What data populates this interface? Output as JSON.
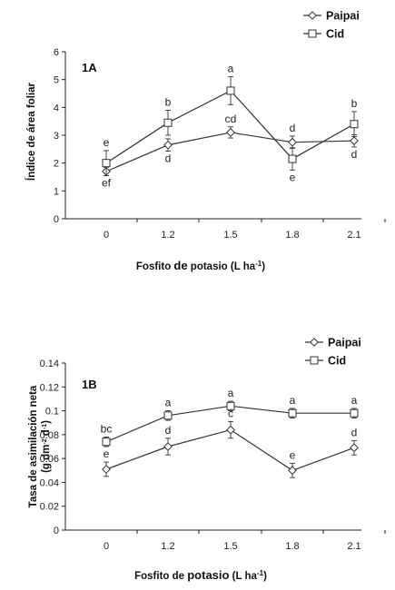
{
  "chart_data": [
    {
      "type": "line",
      "panel_label": "1A",
      "categories": [
        "0",
        "1.2",
        "1.5",
        "1.8",
        "2.1"
      ],
      "xlabel_main": "Fosfito ",
      "xlabel_de": "de",
      "xlabel_rest": " potasio (L ha",
      "xlabel_sup": "-1",
      "xlabel_close": ")",
      "ylabel_line1": "Índice de área foliar",
      "ylabel_line2": "",
      "ylim": [
        0,
        6
      ],
      "yticks": [
        0,
        1,
        2,
        3,
        4,
        5,
        6
      ],
      "ytick_labels": [
        "0",
        "1",
        "2",
        "3",
        "4",
        "5",
        "6"
      ],
      "legend_position": "top-right",
      "series": [
        {
          "name": "Paipai",
          "marker": "diamond",
          "values": [
            1.7,
            2.65,
            3.1,
            2.75,
            2.8
          ],
          "errors": [
            0.15,
            0.22,
            0.2,
            0.22,
            0.22
          ],
          "letters": [
            "ef",
            "d",
            "cd",
            "d",
            "d"
          ],
          "letter_side": [
            "below",
            "below",
            "above",
            "above",
            "below"
          ]
        },
        {
          "name": "Cid",
          "marker": "square",
          "values": [
            2.0,
            3.45,
            4.6,
            2.15,
            3.4
          ],
          "errors": [
            0.45,
            0.45,
            0.5,
            0.4,
            0.45
          ],
          "letters": [
            "e",
            "b",
            "a",
            "e",
            "b"
          ],
          "letter_side": [
            "above",
            "above",
            "above",
            "below",
            "above"
          ]
        }
      ]
    },
    {
      "type": "line",
      "panel_label": "1B",
      "categories": [
        "0",
        "1.2",
        "1.5",
        "1.8",
        "2.1"
      ],
      "xlabel_main": "Fosfito de ",
      "xlabel_de": "potasio",
      "xlabel_rest": " (L ha",
      "xlabel_sup": "-1",
      "xlabel_close": ")",
      "ylabel_line1": "Tasa de asimilación neta",
      "ylabel_line2": "(g dm-2 d-1)",
      "ylabel_line2_parts": [
        "(g dm",
        "-2",
        " d",
        "-1",
        ")"
      ],
      "ylim": [
        0,
        0.14
      ],
      "yticks": [
        0,
        0.02,
        0.04,
        0.06,
        0.08,
        0.1,
        0.12,
        0.14
      ],
      "ytick_labels": [
        "0",
        "0.02",
        "0.04",
        "0.06",
        "0.08",
        "0.1",
        "0.12",
        "0.14"
      ],
      "legend_position": "top-right",
      "series": [
        {
          "name": "Paipai",
          "marker": "diamond",
          "values": [
            0.051,
            0.07,
            0.084,
            0.05,
            0.069
          ],
          "errors": [
            0.006,
            0.007,
            0.007,
            0.006,
            0.006
          ],
          "letters": [
            "e",
            "d",
            "c",
            "e",
            "d"
          ],
          "letter_side": [
            "above",
            "above",
            "above",
            "above",
            "above"
          ]
        },
        {
          "name": "Cid",
          "marker": "square",
          "values": [
            0.074,
            0.096,
            0.104,
            0.098,
            0.098
          ],
          "errors": [
            0.004,
            0.004,
            0.004,
            0.004,
            0.004
          ],
          "letters": [
            "bc",
            "a",
            "a",
            "a",
            "a"
          ],
          "letter_side": [
            "above",
            "above",
            "above",
            "above",
            "above"
          ]
        }
      ]
    }
  ]
}
